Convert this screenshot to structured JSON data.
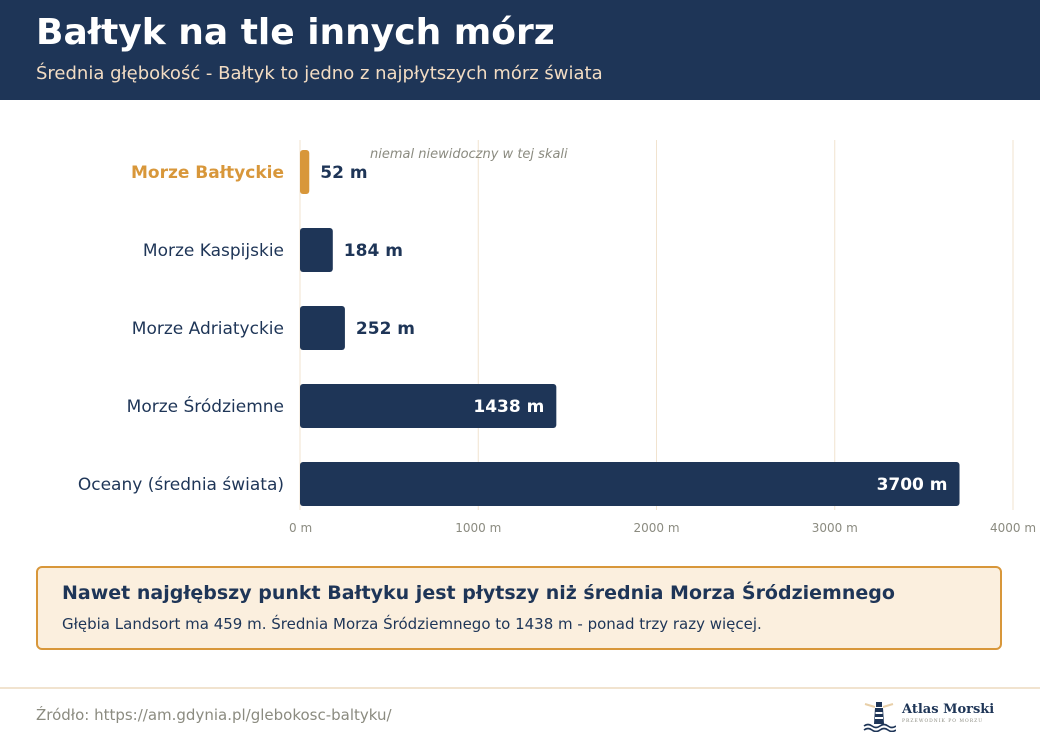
{
  "header": {
    "title": "Bałtyk na tle innych mórz",
    "subtitle": "Średnia głębokość - Bałtyk to jedno z najpłytszych mórz świata"
  },
  "chart_data": {
    "type": "bar",
    "orientation": "horizontal",
    "title": "",
    "xlabel": "",
    "ylabel": "",
    "categories": [
      "Morze Bałtyckie",
      "Morze Kaspijskie",
      "Morze Adriatyckie",
      "Morze Śródziemne",
      "Oceany (średnia świata)"
    ],
    "values": [
      52,
      184,
      252,
      1438,
      3700
    ],
    "value_labels": [
      "52 m",
      "184 m",
      "252 m",
      "1438 m",
      "3700 m"
    ],
    "xlim": [
      0,
      4000
    ],
    "ticks": [
      0,
      1000,
      2000,
      3000,
      4000
    ],
    "tick_labels": [
      "0 m",
      "1000 m",
      "2000 m",
      "3000 m",
      "4000 m"
    ],
    "highlight_index": 0,
    "annotation": "niemal niewidoczny w tej skali",
    "grid": "vertical",
    "colors": {
      "bar": "#1e3557",
      "highlight": "#d8973a",
      "grid": "#f1e3cf",
      "tick_text": "#8b8b80",
      "label_text": "#1e3557"
    }
  },
  "callout": {
    "title": "Nawet najgłębszy punkt Bałtyku jest płytszy niż średnia Morza Śródziemnego",
    "text": "Głębia Landsort ma 459 m. Średnia Morza Śródziemnego to 1438 m - ponad trzy razy więcej."
  },
  "footer": {
    "source": "Źródło: https://am.gdynia.pl/glebokosc-baltyku/",
    "logo_name": "Atlas Morski",
    "logo_tagline": "PRZEWODNIK PO MORZU"
  }
}
